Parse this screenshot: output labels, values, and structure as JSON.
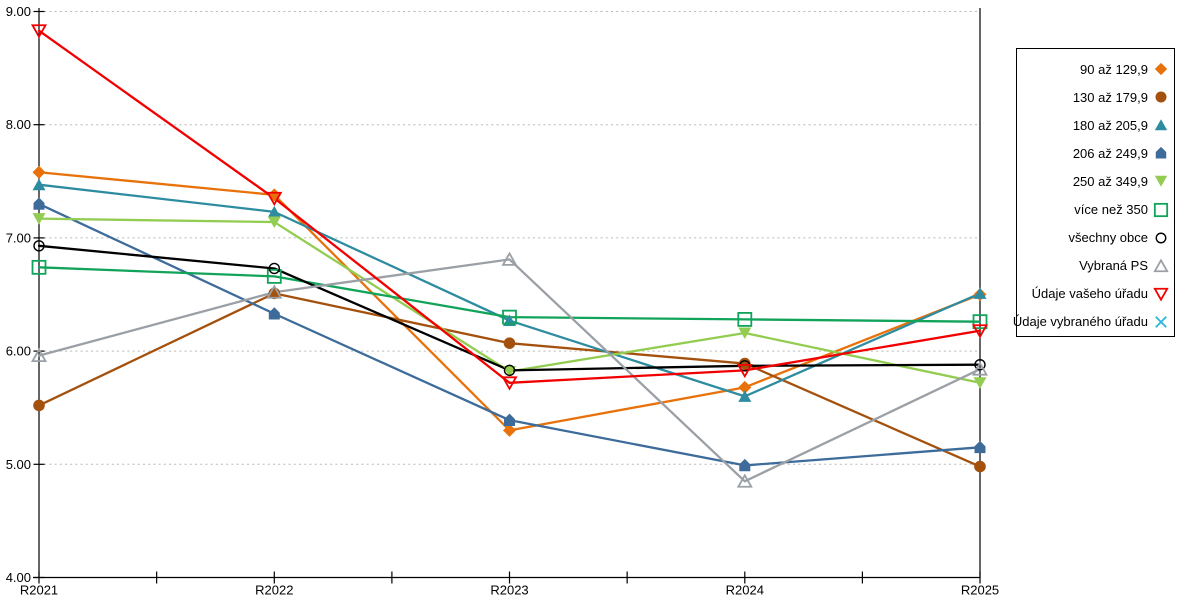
{
  "chart_data": {
    "type": "line",
    "title": "",
    "xlabel": "",
    "ylabel": "",
    "categories": [
      "R2021",
      "R2022",
      "R2023",
      "R2024",
      "R2025"
    ],
    "ylim": [
      4,
      9
    ],
    "y_tick_labels": [
      "9.00",
      "8.00",
      "7.00",
      "6.00",
      "5.00",
      "4.00"
    ],
    "grid": "horizontal-dotted",
    "legend_position": "right",
    "series": [
      {
        "name": "90 až 129,9",
        "marker": "diamond",
        "fill": "filled",
        "color": "#E8710A",
        "values": [
          7.58,
          7.38,
          5.3,
          5.68,
          6.5
        ]
      },
      {
        "name": "130 až 179,9",
        "marker": "circle",
        "fill": "filled",
        "color": "#A5510E",
        "values": [
          5.52,
          6.51,
          6.07,
          5.89,
          4.98
        ]
      },
      {
        "name": "180 až 205,9",
        "marker": "triangle-up",
        "fill": "filled",
        "color": "#2E8CA0",
        "values": [
          7.47,
          7.23,
          6.27,
          5.6,
          6.51
        ]
      },
      {
        "name": "206 až 249,9",
        "marker": "pentagon-up",
        "fill": "filled",
        "color": "#3D6B9A",
        "values": [
          7.3,
          6.33,
          5.39,
          4.99,
          5.15
        ]
      },
      {
        "name": "250 až 349,9",
        "marker": "triangle-down",
        "fill": "filled",
        "color": "#92CC50",
        "values": [
          7.17,
          7.14,
          5.82,
          6.16,
          5.72
        ]
      },
      {
        "name": "více než 350",
        "marker": "square",
        "fill": "open",
        "color": "#12A35B",
        "values": [
          6.74,
          6.66,
          6.3,
          6.28,
          6.26
        ]
      },
      {
        "name": "všechny obce",
        "marker": "circle",
        "fill": "open",
        "color": "#000000",
        "values": [
          6.93,
          6.73,
          5.83,
          5.87,
          5.88
        ]
      },
      {
        "name": "Vybraná PS",
        "marker": "triangle-up",
        "fill": "open",
        "color": "#9AA0A6",
        "values": [
          5.96,
          6.52,
          6.81,
          4.85,
          5.84
        ]
      },
      {
        "name": "Údaje vašeho úřadu",
        "marker": "triangle-down",
        "fill": "open",
        "color": "#F20000",
        "values": [
          8.83,
          7.35,
          5.72,
          5.83,
          6.18
        ]
      },
      {
        "name": "Údaje vybraného úřadu",
        "marker": "x",
        "fill": "open",
        "color": "#29B4D8",
        "values": []
      }
    ],
    "style": {
      "grid_color": "#B8B8B8",
      "axis_color": "#000000",
      "background": "#FFFFFF"
    }
  }
}
